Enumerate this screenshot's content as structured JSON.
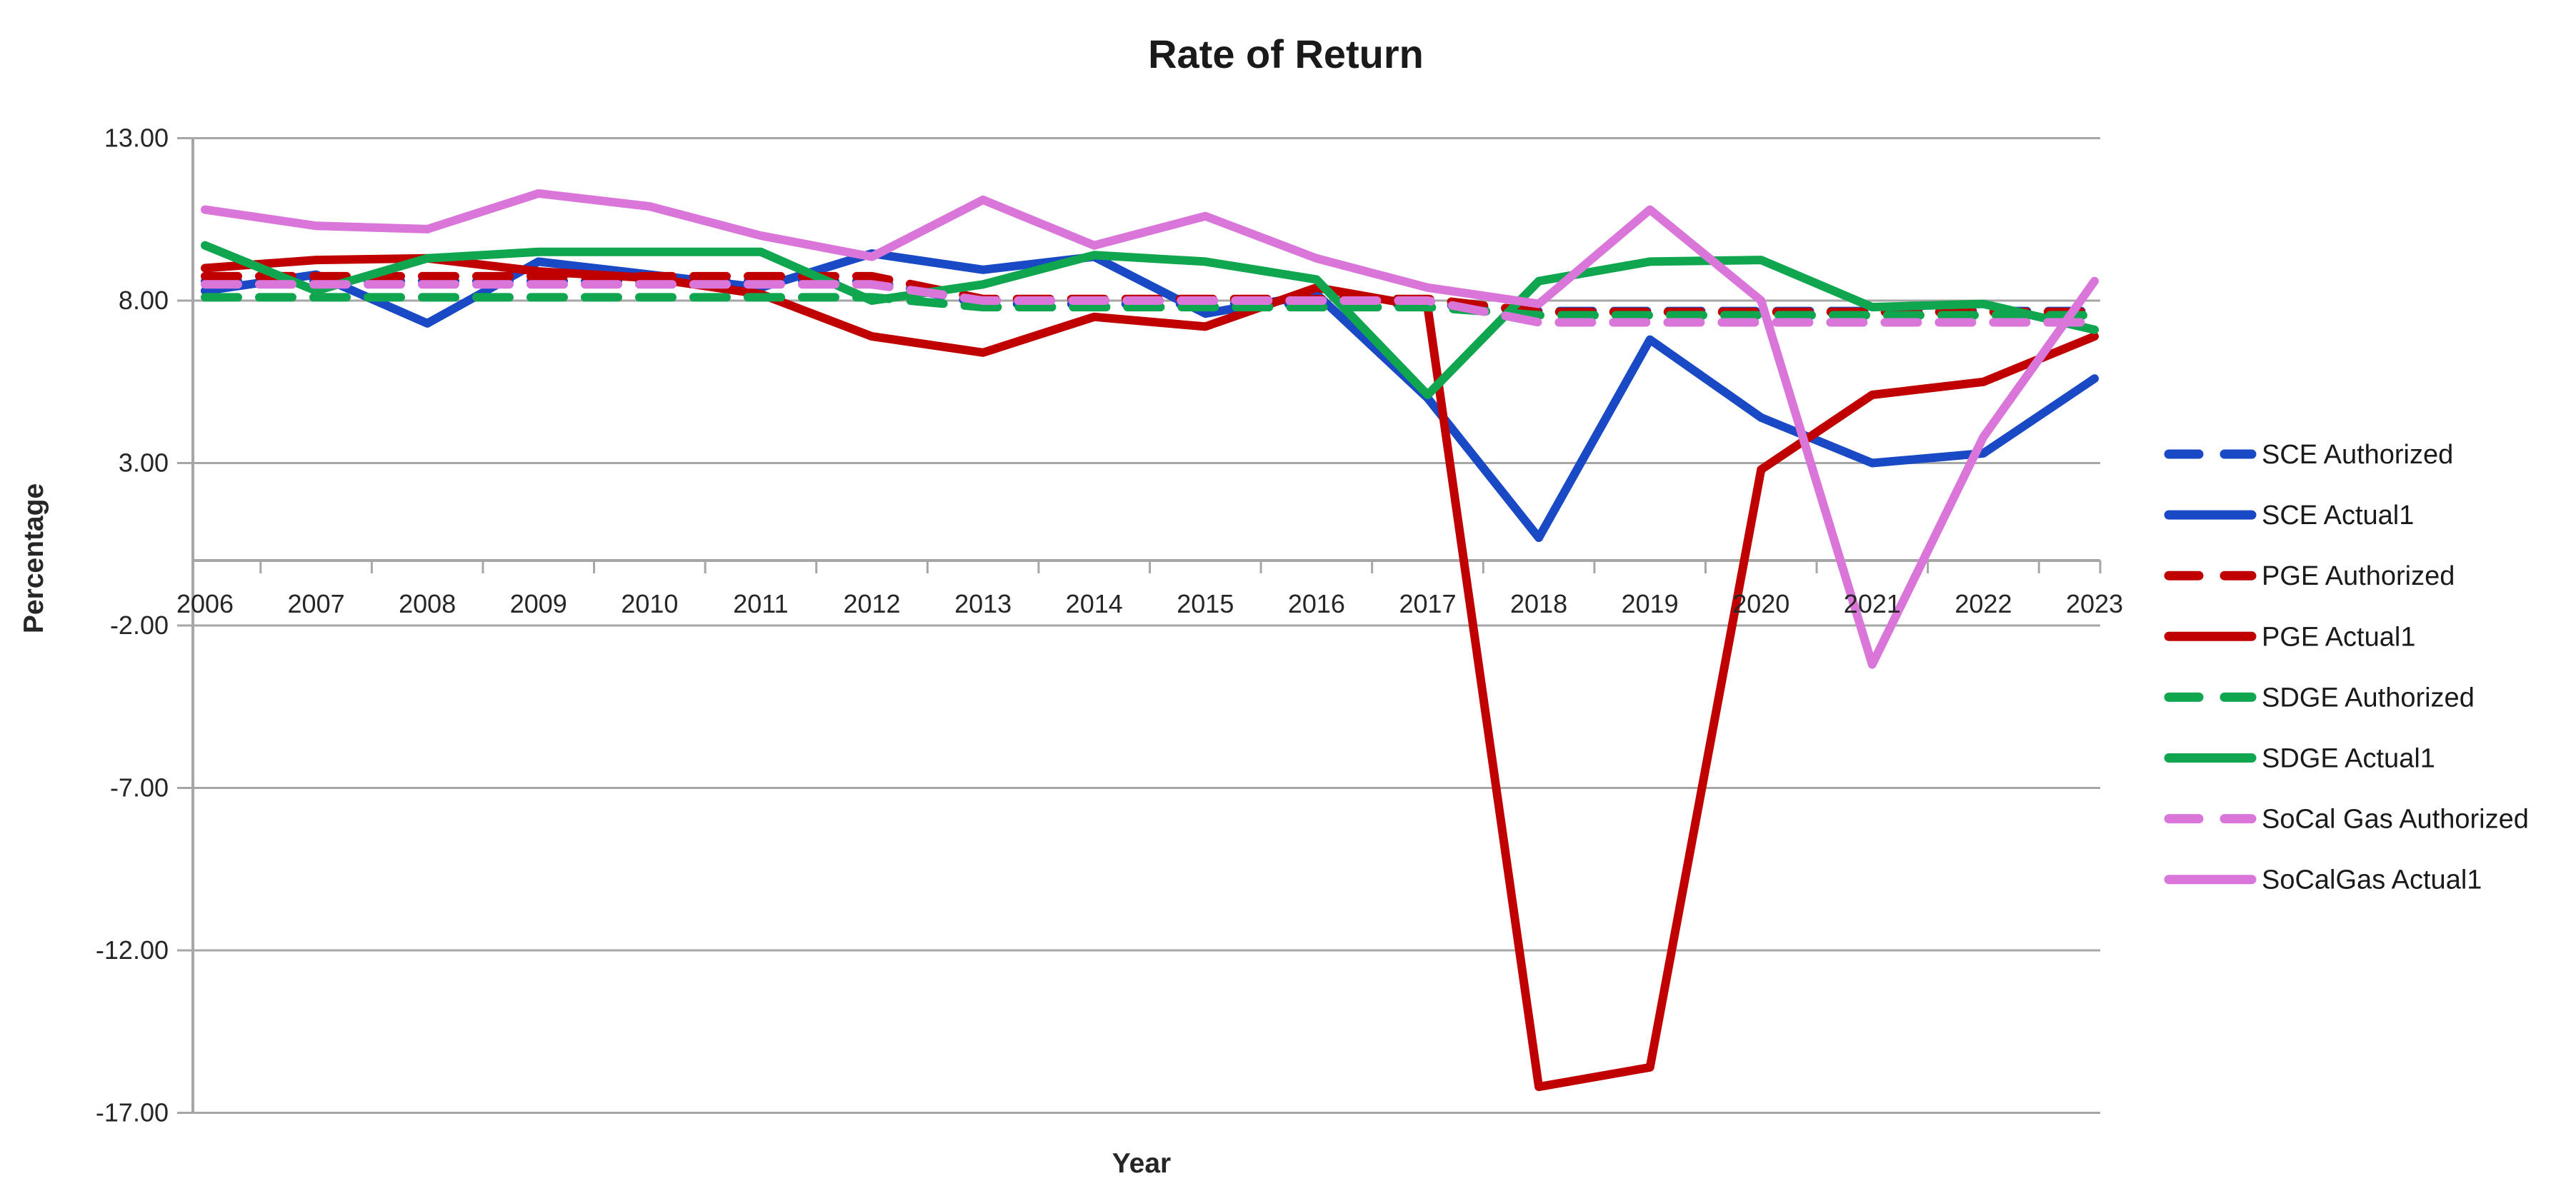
{
  "window": {
    "background": "#FFFFFF"
  },
  "chart_data": {
    "type": "line",
    "title": "Rate of Return",
    "xlabel": "Year",
    "ylabel": "Percentage",
    "ylim": [
      -17.0,
      13.0
    ],
    "ytick_step": 5,
    "grid": true,
    "legend_position": "right",
    "axis_color": "#A6A6A6",
    "y_tick_labels": [
      "13.00",
      "8.00",
      "3.00",
      "-2.00",
      "-7.00",
      "-12.00",
      "-17.00"
    ],
    "y_tick_values": [
      13,
      8,
      3,
      -2,
      -7,
      -12,
      -17
    ],
    "categories": [
      "2006",
      "2007",
      "2008",
      "2009",
      "2010",
      "2011",
      "2012",
      "2013",
      "2014",
      "2015",
      "2016",
      "2017",
      "2018",
      "2019",
      "2020",
      "2021",
      "2022",
      "2023"
    ],
    "series": [
      {
        "name": "SCE Authorized",
        "color": "#1A49C5",
        "style": "dashed",
        "values": [
          8.6,
          8.6,
          8.6,
          8.6,
          8.6,
          8.6,
          8.6,
          7.9,
          7.9,
          7.9,
          7.9,
          7.9,
          7.68,
          7.68,
          7.68,
          7.68,
          7.68,
          7.68
        ]
      },
      {
        "name": "SCE Actual1",
        "color": "#1A49C5",
        "style": "solid",
        "values": [
          8.3,
          8.8,
          7.3,
          9.2,
          8.8,
          8.4,
          9.45,
          8.95,
          9.35,
          7.6,
          8.2,
          5.0,
          0.7,
          6.8,
          4.4,
          3.0,
          3.3,
          5.6
        ]
      },
      {
        "name": "PGE Authorized",
        "color": "#C00000",
        "style": "dashed",
        "values": [
          8.75,
          8.75,
          8.75,
          8.75,
          8.75,
          8.75,
          8.75,
          8.05,
          8.05,
          8.05,
          8.05,
          8.05,
          7.65,
          7.65,
          7.65,
          7.65,
          7.65,
          7.65
        ]
      },
      {
        "name": "PGE Actual1",
        "color": "#C00000",
        "style": "solid",
        "values": [
          9.0,
          9.25,
          9.3,
          8.9,
          8.7,
          8.2,
          6.9,
          6.4,
          7.5,
          7.2,
          8.4,
          7.8,
          -16.2,
          -15.6,
          2.8,
          5.1,
          5.5,
          6.9
        ]
      },
      {
        "name": "SDGE Authorized",
        "color": "#0FA64F",
        "style": "dashed",
        "values": [
          8.1,
          8.1,
          8.1,
          8.1,
          8.1,
          8.1,
          8.1,
          7.8,
          7.8,
          7.8,
          7.8,
          7.8,
          7.55,
          7.55,
          7.55,
          7.55,
          7.55,
          7.55
        ]
      },
      {
        "name": "SDGE Actual1",
        "color": "#0FA64F",
        "style": "solid",
        "values": [
          9.7,
          8.3,
          9.3,
          9.5,
          9.5,
          9.5,
          8.0,
          8.5,
          9.4,
          9.2,
          8.65,
          5.1,
          8.6,
          9.2,
          9.25,
          7.8,
          7.9,
          7.1
        ]
      },
      {
        "name": "SoCal Gas Authorized",
        "color": "#DA76DA",
        "style": "dashed",
        "values": [
          8.5,
          8.5,
          8.5,
          8.5,
          8.5,
          8.5,
          8.5,
          8.0,
          8.0,
          8.0,
          8.0,
          8.0,
          7.33,
          7.33,
          7.33,
          7.33,
          7.33,
          7.33
        ]
      },
      {
        "name": "SoCalGas Actual1",
        "color": "#DA76DA",
        "style": "solid",
        "values": [
          10.8,
          10.3,
          10.2,
          11.3,
          10.9,
          10.0,
          9.35,
          11.1,
          9.7,
          10.6,
          9.3,
          8.4,
          7.9,
          10.8,
          8.0,
          -3.2,
          3.8,
          8.6
        ]
      }
    ]
  }
}
